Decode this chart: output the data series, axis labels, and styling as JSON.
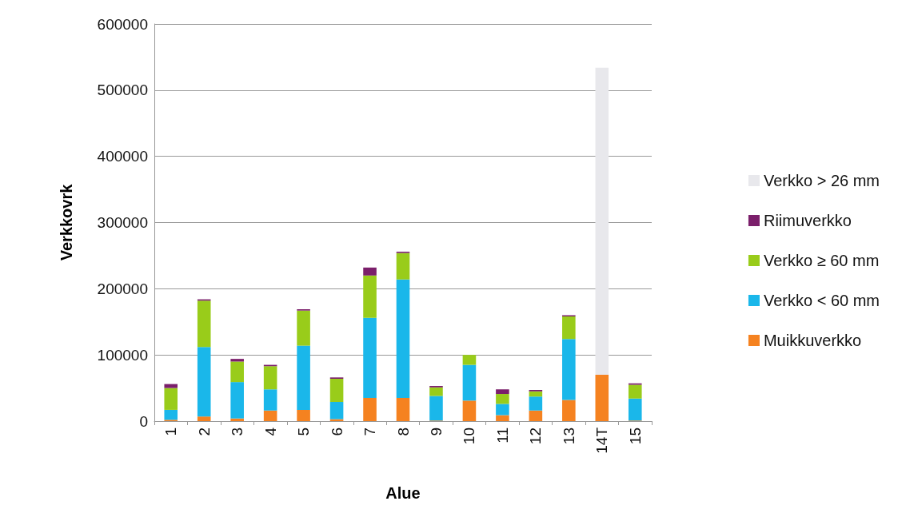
{
  "chart_data": {
    "type": "bar",
    "stacked": true,
    "xlabel": "Alue",
    "ylabel": "Verkkovrk",
    "categories": [
      "1",
      "2",
      "3",
      "4",
      "5",
      "6",
      "7",
      "8",
      "9",
      "10",
      "11",
      "12",
      "13",
      "14T",
      "15"
    ],
    "series": [
      {
        "name": "Muikkuverkko",
        "color": "#f58220",
        "values": [
          2000,
          7000,
          4000,
          16000,
          17000,
          3000,
          35000,
          35000,
          1000,
          31000,
          9000,
          16000,
          32000,
          70000,
          1000
        ]
      },
      {
        "name": "Verkko < 60 mm",
        "color": "#1ab7ea",
        "values": [
          15000,
          105000,
          55000,
          32000,
          97000,
          26000,
          121000,
          179000,
          37000,
          54000,
          17000,
          21000,
          92000,
          0,
          33000
        ]
      },
      {
        "name": "Verkko ≥ 60 mm",
        "color": "#99cc1a",
        "values": [
          33000,
          70000,
          31000,
          35000,
          53000,
          35000,
          64000,
          40000,
          13000,
          15000,
          15000,
          8000,
          34000,
          0,
          21000
        ]
      },
      {
        "name": "Riimuverkko",
        "color": "#7b1f6b",
        "values": [
          6000,
          2000,
          4000,
          2000,
          2000,
          2000,
          12000,
          2000,
          2000,
          0,
          7000,
          2000,
          2000,
          0,
          2000
        ]
      },
      {
        "name": "Verkko > 26 mm",
        "color": "#e8e8ec",
        "values": [
          0,
          0,
          0,
          0,
          0,
          0,
          0,
          0,
          0,
          0,
          0,
          0,
          0,
          464000,
          0
        ]
      }
    ],
    "ylim": [
      0,
      600000
    ],
    "yticks": [
      0,
      100000,
      200000,
      300000,
      400000,
      500000,
      600000
    ],
    "grid": "y",
    "legend": "right"
  }
}
